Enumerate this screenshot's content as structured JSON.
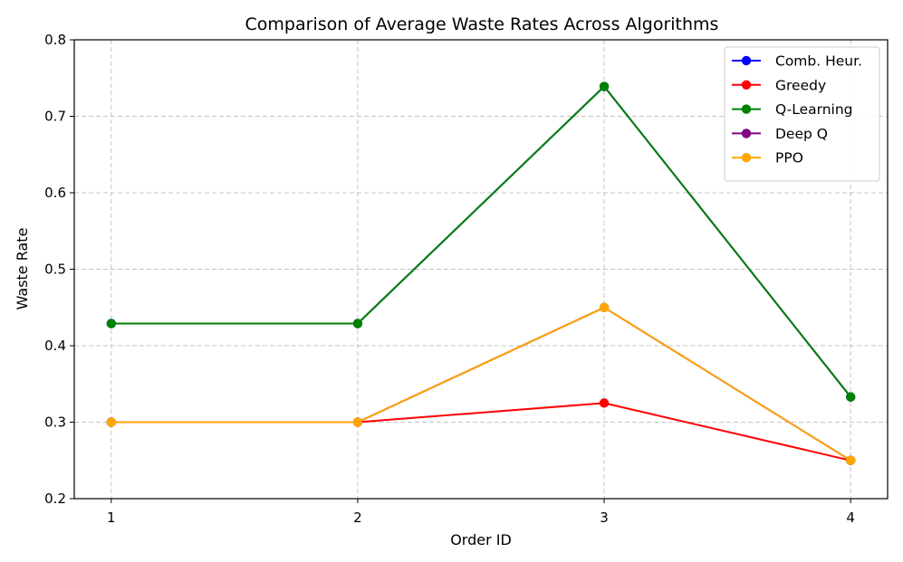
{
  "chart_data": {
    "type": "line",
    "title": "Comparison of Average Waste Rates Across Algorithms",
    "xlabel": "Order ID",
    "ylabel": "Waste Rate",
    "x": [
      1,
      2,
      3,
      4
    ],
    "xticks": [
      "1",
      "2",
      "3",
      "4"
    ],
    "ylim": [
      0.2,
      0.8
    ],
    "yticks": [
      "0.2",
      "0.3",
      "0.4",
      "0.5",
      "0.6",
      "0.7",
      "0.8"
    ],
    "grid": true,
    "legend_position": "top-right",
    "series": [
      {
        "name": "Comb. Heur.",
        "color": "#0000ff",
        "values": [
          0.429,
          0.429,
          0.739,
          0.333
        ]
      },
      {
        "name": "Greedy",
        "color": "#ff0000",
        "values": [
          0.3,
          0.3,
          0.325,
          0.25
        ]
      },
      {
        "name": "Q-Learning",
        "color": "#008000",
        "values": [
          0.429,
          0.429,
          0.739,
          0.333
        ]
      },
      {
        "name": "Deep Q",
        "color": "#800080",
        "values": [
          0.3,
          0.3,
          0.45,
          0.25
        ]
      },
      {
        "name": "PPO",
        "color": "#ffa500",
        "values": [
          0.3,
          0.3,
          0.45,
          0.25
        ]
      }
    ]
  }
}
